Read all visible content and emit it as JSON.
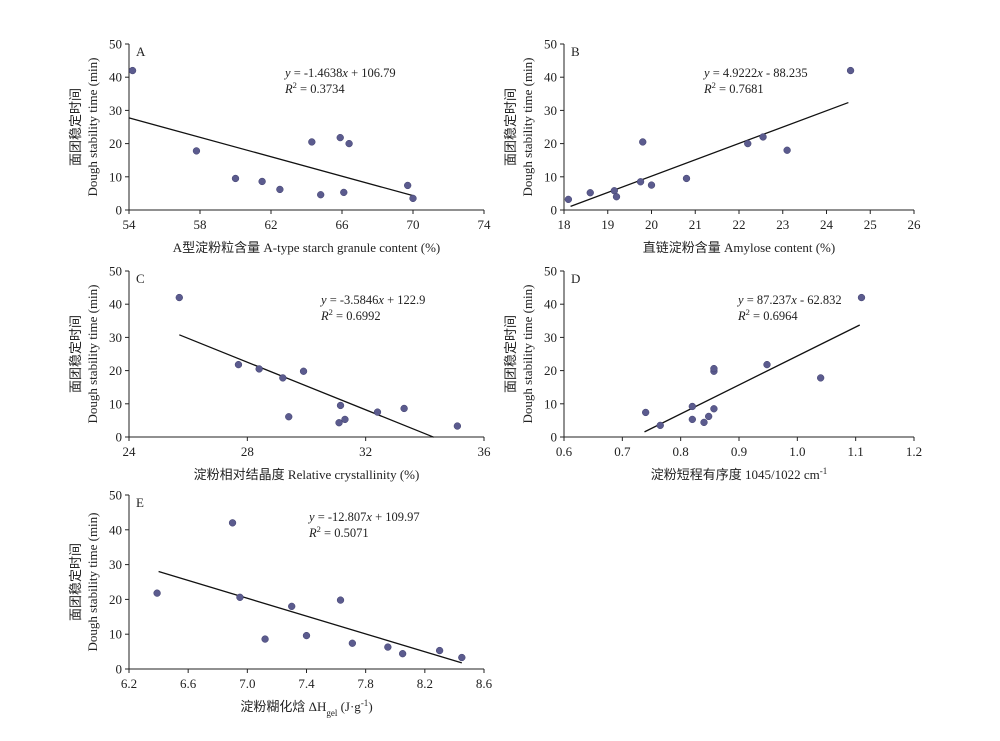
{
  "chart_data": [
    {
      "panel": "A",
      "type": "scatter",
      "xlabel": "A型淀粉粒含量 A-type starch granule content (%)",
      "ylabel_cn": "面团稳定时间",
      "ylabel_en": "Dough stability time (min)",
      "xlim": [
        54,
        74
      ],
      "ylim": [
        0,
        50
      ],
      "xticks": [
        "54",
        "58",
        "62",
        "66",
        "70",
        "74"
      ],
      "yticks": [
        "0",
        "10",
        "20",
        "30",
        "40",
        "50"
      ],
      "points": [
        [
          54.2,
          42.0
        ],
        [
          57.8,
          17.8
        ],
        [
          60.0,
          9.5
        ],
        [
          61.5,
          8.6
        ],
        [
          62.5,
          6.2
        ],
        [
          64.3,
          20.5
        ],
        [
          64.8,
          4.6
        ],
        [
          65.9,
          21.8
        ],
        [
          66.1,
          5.3
        ],
        [
          66.4,
          20.0
        ],
        [
          69.7,
          7.4
        ],
        [
          70.0,
          3.5
        ]
      ],
      "fit": {
        "slope": -1.4638,
        "intercept": 106.79,
        "x_range": [
          54,
          70
        ]
      },
      "equation": {
        "lhs": "y",
        "eq_a": " = -1.4638",
        "var": "x",
        "rest": " + 106.79"
      },
      "r2": {
        "lhs": "R",
        "sup": "2",
        "rest": " = 0.3734"
      }
    },
    {
      "panel": "B",
      "type": "scatter",
      "xlabel": "直链淀粉含量 Amylose content (%)",
      "ylabel_cn": "面团稳定时间",
      "ylabel_en": "Dough stability time (min)",
      "xlim": [
        18,
        26
      ],
      "ylim": [
        0,
        50
      ],
      "xticks": [
        "18",
        "19",
        "20",
        "21",
        "22",
        "23",
        "24",
        "25",
        "26"
      ],
      "yticks": [
        "0",
        "10",
        "20",
        "30",
        "40",
        "50"
      ],
      "points": [
        [
          18.1,
          3.2
        ],
        [
          18.6,
          5.2
        ],
        [
          19.15,
          5.8
        ],
        [
          19.2,
          4.0
        ],
        [
          19.75,
          8.5
        ],
        [
          19.8,
          20.5
        ],
        [
          20.0,
          7.5
        ],
        [
          20.8,
          9.5
        ],
        [
          22.2,
          20.0
        ],
        [
          22.55,
          22.0
        ],
        [
          23.1,
          18.0
        ],
        [
          24.55,
          42.0
        ]
      ],
      "fit": {
        "slope": 4.9222,
        "intercept": -88.235,
        "x_range": [
          18.15,
          24.5
        ]
      },
      "equation": {
        "lhs": "y",
        "eq_a": " = 4.9222",
        "var": "x",
        "rest": " - 88.235"
      },
      "r2": {
        "lhs": "R",
        "sup": "2",
        "rest": " = 0.7681"
      }
    },
    {
      "panel": "C",
      "type": "scatter",
      "xlabel": "淀粉相对结晶度 Relative crystallinity (%)",
      "ylabel_cn": "面团稳定时间",
      "ylabel_en": "Dough stability time (min)",
      "xlim": [
        24,
        36
      ],
      "ylim": [
        0,
        50
      ],
      "xticks": [
        "24",
        "28",
        "32",
        "36"
      ],
      "yticks": [
        "0",
        "10",
        "20",
        "30",
        "40",
        "50"
      ],
      "points": [
        [
          25.7,
          42.0
        ],
        [
          27.7,
          21.8
        ],
        [
          28.4,
          20.5
        ],
        [
          29.2,
          17.8
        ],
        [
          29.4,
          6.1
        ],
        [
          29.9,
          19.8
        ],
        [
          31.1,
          4.3
        ],
        [
          31.15,
          9.5
        ],
        [
          31.3,
          5.3
        ],
        [
          32.4,
          7.5
        ],
        [
          33.3,
          8.6
        ],
        [
          35.1,
          3.3
        ]
      ],
      "fit": {
        "slope": -3.5846,
        "intercept": 122.9,
        "x_range": [
          25.7,
          34.3
        ]
      },
      "equation": {
        "lhs": "y",
        "eq_a": " = -3.5846",
        "var": "x",
        "rest": " + 122.9"
      },
      "r2": {
        "lhs": "R",
        "sup": "2",
        "rest": " = 0.6992"
      }
    },
    {
      "panel": "D",
      "type": "scatter",
      "xlabel": "淀粉短程有序度 1045/1022 cm",
      "xlabel_sup": "-1",
      "ylabel_cn": "面团稳定时间",
      "ylabel_en": "Dough stability time (min)",
      "xlim": [
        0.6,
        1.2
      ],
      "ylim": [
        0,
        50
      ],
      "xticks": [
        "0.6",
        "0.7",
        "0.8",
        "0.9",
        "1.0",
        "1.1",
        "1.2"
      ],
      "yticks": [
        "0",
        "10",
        "20",
        "30",
        "40",
        "50"
      ],
      "points": [
        [
          0.74,
          7.4
        ],
        [
          0.765,
          3.5
        ],
        [
          0.82,
          9.2
        ],
        [
          0.82,
          5.3
        ],
        [
          0.84,
          4.4
        ],
        [
          0.848,
          6.2
        ],
        [
          0.857,
          8.5
        ],
        [
          0.857,
          19.8
        ],
        [
          0.857,
          20.6
        ],
        [
          0.948,
          21.8
        ],
        [
          1.04,
          17.8
        ],
        [
          1.11,
          42.0
        ]
      ],
      "fit": {
        "slope": 87.237,
        "intercept": -62.832,
        "x_range": [
          0.738,
          1.107
        ]
      },
      "equation": {
        "lhs": "y",
        "eq_a": " = 87.237",
        "var": "x",
        "rest": " - 62.832"
      },
      "r2": {
        "lhs": "R",
        "sup": "2",
        "rest": " = 0.6964"
      }
    },
    {
      "panel": "E",
      "type": "scatter",
      "xlabel": "淀粉糊化焓 ΔH",
      "xlabel_sub": "gel",
      "xlabel_unit": " (J·g",
      "xlabel_unit_sup": "-1",
      "xlabel_close": ")",
      "ylabel_cn": "面团稳定时间",
      "ylabel_en": "Dough stability time (min)",
      "xlim": [
        6.2,
        8.6
      ],
      "ylim": [
        0,
        50
      ],
      "xticks": [
        "6.2",
        "6.6",
        "7.0",
        "7.4",
        "7.8",
        "8.2",
        "8.6"
      ],
      "yticks": [
        "0",
        "10",
        "20",
        "30",
        "40",
        "50"
      ],
      "points": [
        [
          6.39,
          21.8
        ],
        [
          6.9,
          42.0
        ],
        [
          6.95,
          20.6
        ],
        [
          7.12,
          8.6
        ],
        [
          7.3,
          18.0
        ],
        [
          7.4,
          9.6
        ],
        [
          7.63,
          19.8
        ],
        [
          7.71,
          7.4
        ],
        [
          7.95,
          6.3
        ],
        [
          8.05,
          4.4
        ],
        [
          8.3,
          5.3
        ],
        [
          8.45,
          3.3
        ]
      ],
      "fit": {
        "slope": -12.807,
        "intercept": 109.97,
        "x_range": [
          6.4,
          8.45
        ]
      },
      "equation": {
        "lhs": "y",
        "eq_a": " = -12.807",
        "var": "x",
        "rest": " + 109.97"
      },
      "r2": {
        "lhs": "R",
        "sup": "2",
        "rest": " = 0.5071"
      }
    }
  ]
}
